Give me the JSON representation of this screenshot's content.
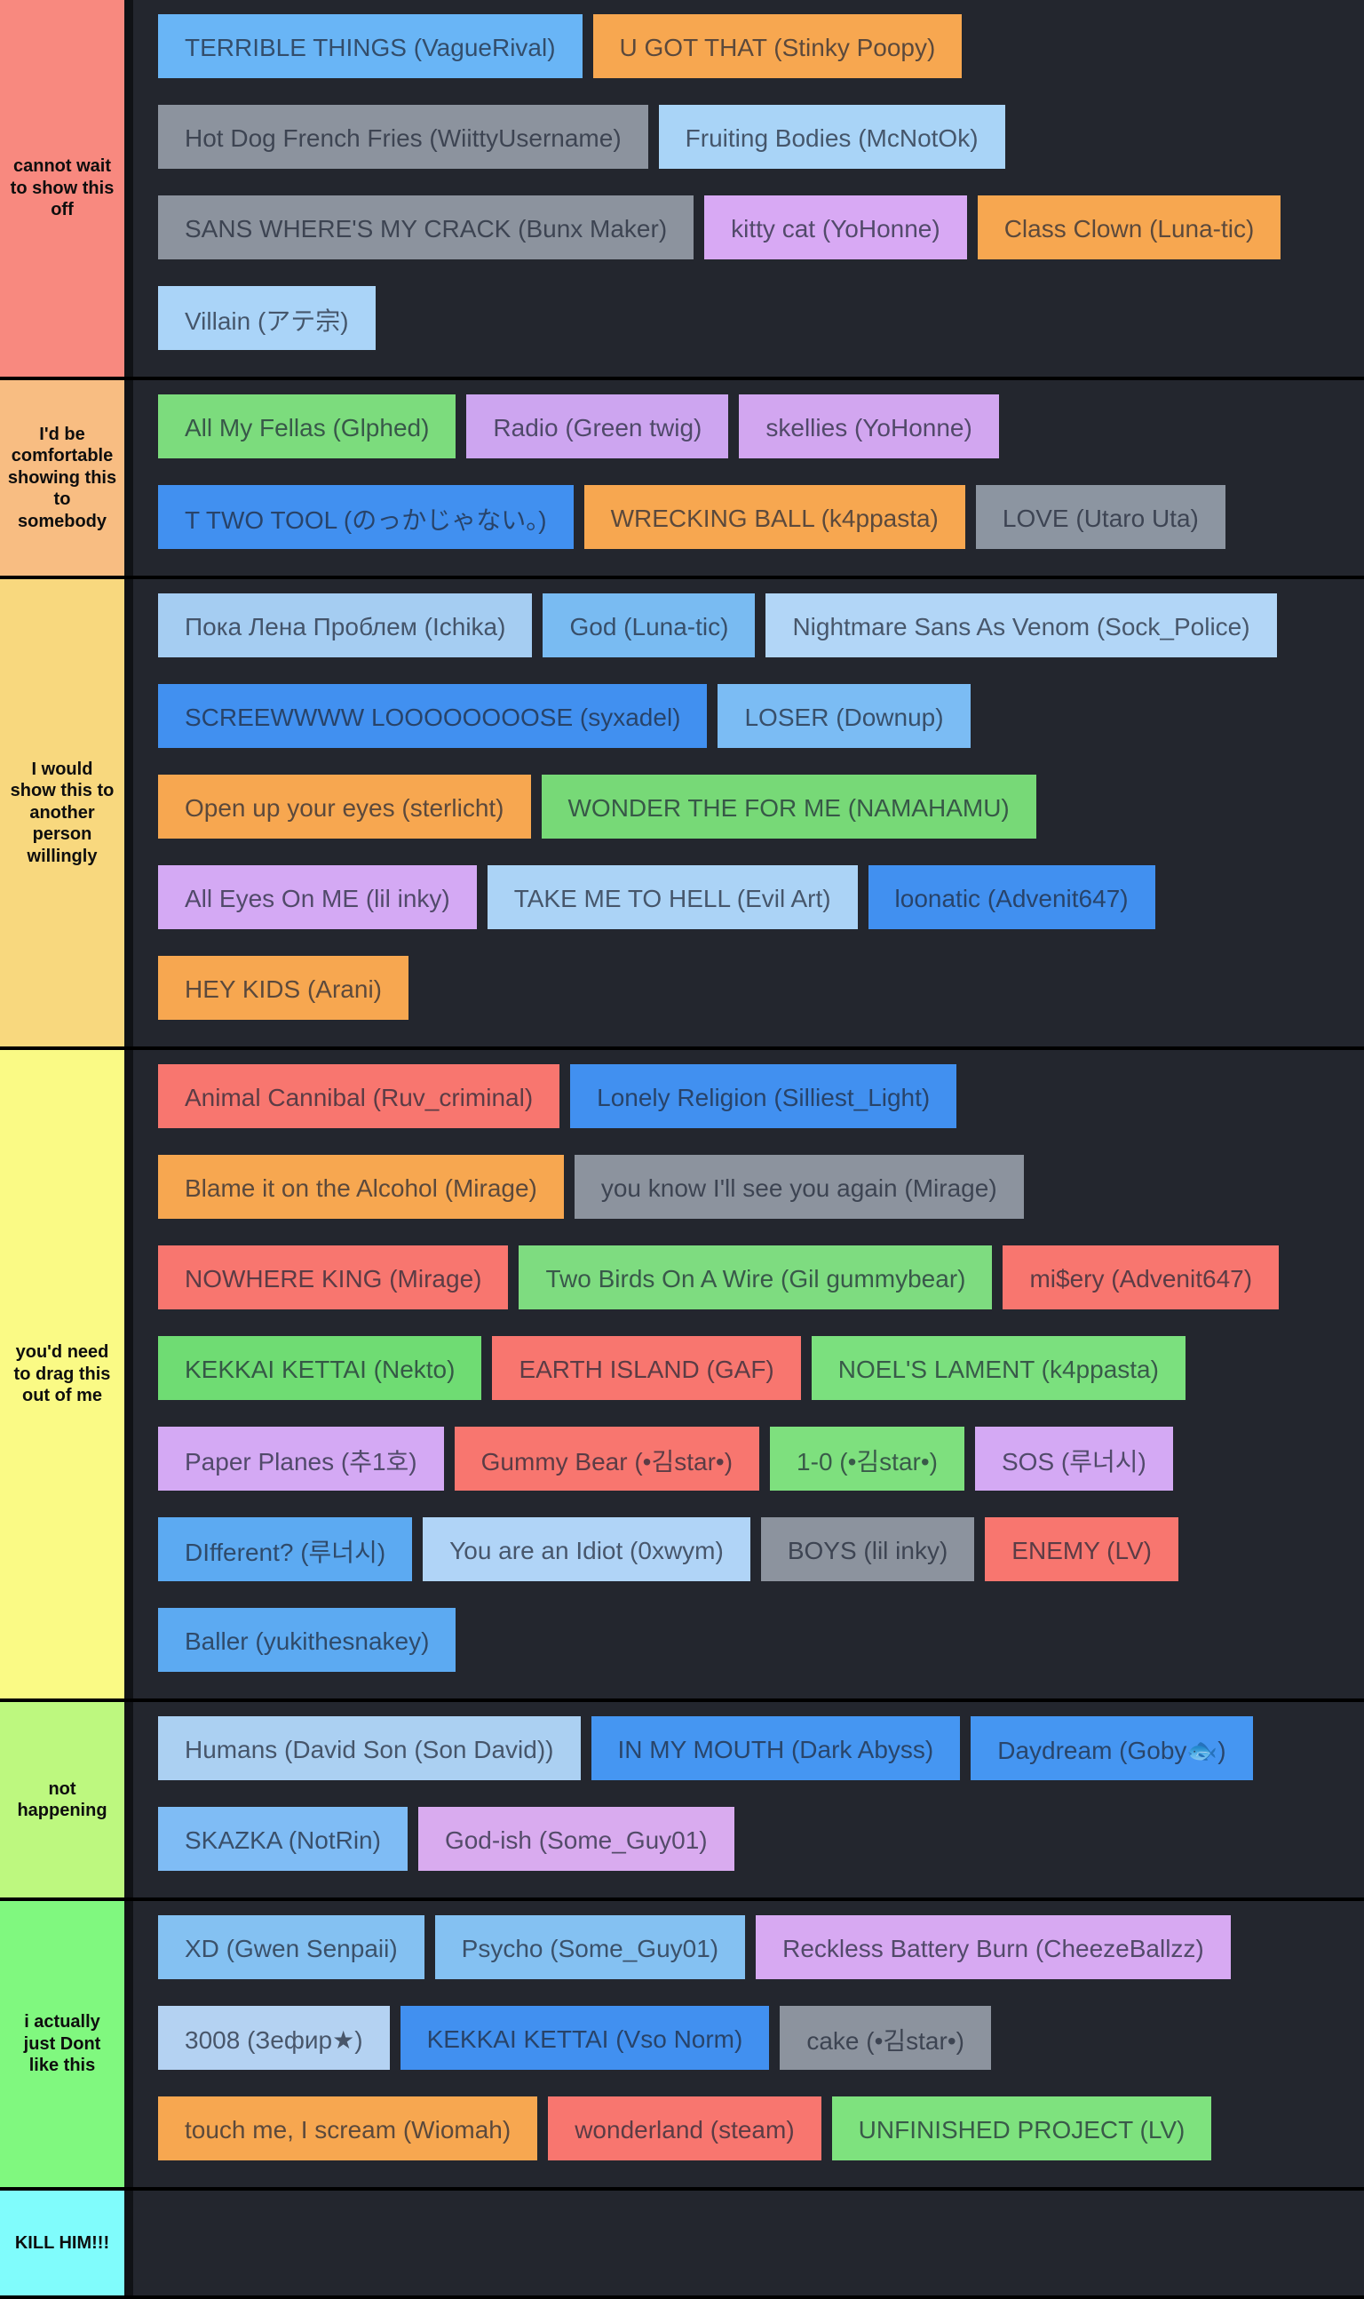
{
  "page": {
    "row_background": "#23262e",
    "separator_color": "#000000",
    "divider_color": "#101216",
    "item_text_color": "rgba(30,38,52,0.72)",
    "tier_label_text_color": "#0e0e0e"
  },
  "tiers": [
    {
      "label": "cannot wait to show this off",
      "color": "#f8897f",
      "items": [
        {
          "label": "TERRIBLE THINGS (VagueRival)",
          "color": "#69b5f6"
        },
        {
          "label": "U GOT THAT (Stinky Poopy)",
          "color": "#f7a750"
        },
        {
          "label": "Hot Dog French Fries (WiittyUsername)",
          "color": "#8c939e"
        },
        {
          "label": "Fruiting Bodies (McNotOk)",
          "color": "#a9d4f7"
        },
        {
          "label": "SANS WHERE'S MY CRACK (Bunx Maker)",
          "color": "#8c939e"
        },
        {
          "label": "kitty cat (YoHonne)",
          "color": "#d8a9f4"
        },
        {
          "label": "Class Clown (Luna-tic)",
          "color": "#f7a750"
        },
        {
          "label": "Villain (アテ宗)",
          "color": "#aad4f8"
        }
      ]
    },
    {
      "label": "I'd be comfortable showing this to somebody",
      "color": "#f8bd82",
      "items": [
        {
          "label": "All My Fellas (Glphed)",
          "color": "#7cdc7d"
        },
        {
          "label": "Radio (Green twig)",
          "color": "#cda5f0"
        },
        {
          "label": "skellies (YoHonne)",
          "color": "#d2a6f0"
        },
        {
          "label": "T TWO TOOL (のっかじゃない。)",
          "color": "#4190f0"
        },
        {
          "label": "WRECKING BALL (k4ppasta)",
          "color": "#f7a750"
        },
        {
          "label": "LOVE (Utaro Uta)",
          "color": "#8c95a1"
        }
      ]
    },
    {
      "label": "I would show this to another person willingly",
      "color": "#f8d87e",
      "items": [
        {
          "label": "Пока Лена Проблем (Ichika)",
          "color": "#a5cdf2"
        },
        {
          "label": "God (Luna-tic)",
          "color": "#79bbf2"
        },
        {
          "label": "Nightmare Sans As Venom (Sock_Police)",
          "color": "#b2d6f7"
        },
        {
          "label": "SCREEWWWW LOOOOOOOOSE (syxadel)",
          "color": "#4190f0"
        },
        {
          "label": "LOSER (Downup)",
          "color": "#7bbcf4"
        },
        {
          "label": "Open up your eyes (sterlicht)",
          "color": "#f7a750"
        },
        {
          "label": "WONDER THE FOR ME (NAMAHAMU)",
          "color": "#77d977"
        },
        {
          "label": "All Eyes On ME (lil inky)",
          "color": "#d4a9f4"
        },
        {
          "label": "TAKE ME TO HELL (Evil Art)",
          "color": "#abd3f6"
        },
        {
          "label": "loonatic (Advenit647)",
          "color": "#4190f0"
        },
        {
          "label": "HEY KIDS (Arani)",
          "color": "#f7a750"
        }
      ]
    },
    {
      "label": "you'd need to drag this out of me",
      "color": "#fafa85",
      "items": [
        {
          "label": "Animal Cannibal (Ruv_criminal)",
          "color": "#f8766f"
        },
        {
          "label": "Lonely Religion (Silliest_Light)",
          "color": "#4190f0"
        },
        {
          "label": "Blame it on the Alcohol (Mirage)",
          "color": "#f7a750"
        },
        {
          "label": "you know I'll see you again (Mirage)",
          "color": "#8c939e"
        },
        {
          "label": "NOWHERE KING (Mirage)",
          "color": "#f8766f"
        },
        {
          "label": "Two Birds On A Wire (Gil gummybear)",
          "color": "#7edc80"
        },
        {
          "label": "mi$ery (Advenit647)",
          "color": "#f8766f"
        },
        {
          "label": "KEKKAI KETTAI (Nekto)",
          "color": "#6fdc73"
        },
        {
          "label": "EARTH ISLAND (GAF)",
          "color": "#f8766f"
        },
        {
          "label": "NOEL'S LAMENT (k4ppasta)",
          "color": "#7be07e"
        },
        {
          "label": "Paper Planes (추1호)",
          "color": "#d4a9f4"
        },
        {
          "label": "Gummy Bear (•김star•)",
          "color": "#f8766f"
        },
        {
          "label": "1-0 (•김star•)",
          "color": "#7ee07e"
        },
        {
          "label": "SOS (루너시)",
          "color": "#d4a9f4"
        },
        {
          "label": "DIfferent? (루너시)",
          "color": "#5caaf2"
        },
        {
          "label": "You are an Idiot (0xwym)",
          "color": "#b0d4f7"
        },
        {
          "label": "BOYS (lil inky)",
          "color": "#8c939e"
        },
        {
          "label": "ENEMY (LV)",
          "color": "#f8766f"
        },
        {
          "label": "Baller (yukithesnakey)",
          "color": "#5caaf2"
        }
      ]
    },
    {
      "label": "not happening",
      "color": "#bdf87f",
      "items": [
        {
          "label": "Humans (David Son (Son David))",
          "color": "#abd0f2"
        },
        {
          "label": "IN MY MOUTH (Dark Abyss)",
          "color": "#4596f2"
        },
        {
          "label": "Daydream (Goby🐟)",
          "color": "#4596f2"
        },
        {
          "label": "SKAZKA (NotRin)",
          "color": "#7fbcf5"
        },
        {
          "label": "God-ish (Some_Guy01)",
          "color": "#d9abef"
        }
      ]
    },
    {
      "label": "i actually just Dont like this",
      "color": "#80f87f",
      "items": [
        {
          "label": "XD (Gwen Senpaii)",
          "color": "#84c1f2"
        },
        {
          "label": "Psycho (Some_Guy01)",
          "color": "#84c1f2"
        },
        {
          "label": "Reckless Battery Burn (CheezeBallzz)",
          "color": "#d7a9f2"
        },
        {
          "label": "3008 (Зефир★)",
          "color": "#b4d2f2"
        },
        {
          "label": "KEKKAI KETTAI (Vso Norm)",
          "color": "#4190f0"
        },
        {
          "label": "cake (•김star•)",
          "color": "#8c939e"
        },
        {
          "label": "touch me, I scream (Wiomah)",
          "color": "#f7a750"
        },
        {
          "label": "wonderland (steam)",
          "color": "#f8766f"
        },
        {
          "label": "UNFINISHED PROJECT (LV)",
          "color": "#7ee27e"
        }
      ]
    },
    {
      "label": "KILL HIM!!!",
      "color": "#80fcfc",
      "items": []
    }
  ]
}
